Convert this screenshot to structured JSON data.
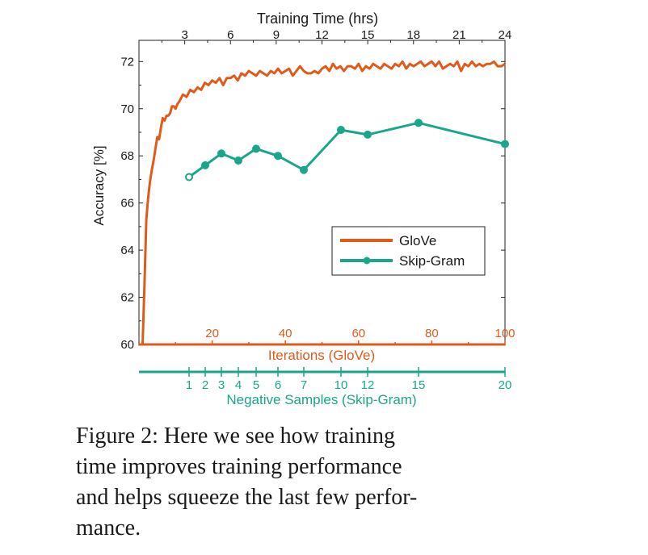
{
  "colors": {
    "glove": "#e05a1a",
    "skipgram": "#1aa68a",
    "axis": "#222222",
    "text": "#1a1a1a"
  },
  "chart_data": {
    "type": "line",
    "top_axis": {
      "label": "Training Time (hrs)",
      "ticks": [
        "3",
        "6",
        "9",
        "12",
        "15",
        "18",
        "21",
        "24"
      ],
      "values": [
        3,
        6,
        9,
        12,
        15,
        18,
        21,
        24
      ],
      "range": [
        0,
        24
      ]
    },
    "y_axis": {
      "label": "Accuracy [%]",
      "ticks": [
        "60",
        "62",
        "64",
        "66",
        "68",
        "70",
        "72"
      ],
      "values": [
        60,
        62,
        64,
        66,
        68,
        70,
        72
      ],
      "range": [
        60,
        72.9
      ]
    },
    "iterations_axis": {
      "label": "Iterations (GloVe)",
      "ticks": [
        "20",
        "40",
        "60",
        "80",
        "100"
      ],
      "values": [
        20,
        40,
        60,
        80,
        100
      ],
      "range": [
        0,
        100
      ]
    },
    "negative_samples_axis": {
      "label": "Negative Samples (Skip-Gram)",
      "ticks": [
        "1",
        "2",
        "3",
        "4",
        "5",
        "6",
        "7",
        "10",
        "12",
        "15",
        "20"
      ]
    },
    "legend": {
      "position": "right-center",
      "entries": [
        "GloVe",
        "Skip-Gram"
      ]
    },
    "series": [
      {
        "name": "GloVe",
        "x_axis": "iterations",
        "x": [
          1,
          1.5,
          2,
          2.5,
          3,
          3.5,
          4,
          4.5,
          5,
          5.5,
          6,
          6.5,
          7,
          7.5,
          8,
          8.5,
          9,
          9.5,
          10,
          10.5,
          11,
          12,
          13,
          14,
          15,
          16,
          17,
          18,
          19,
          20,
          21,
          22,
          23,
          24,
          25,
          26,
          27,
          28,
          29,
          30,
          31,
          32,
          33,
          34,
          35,
          36,
          37,
          38,
          39,
          40,
          41,
          42,
          43,
          44,
          45,
          46,
          47,
          48,
          49,
          50,
          51,
          52,
          53,
          54,
          55,
          56,
          57,
          58,
          59,
          60,
          61,
          62,
          63,
          64,
          65,
          66,
          67,
          68,
          69,
          70,
          71,
          72,
          73,
          74,
          75,
          76,
          77,
          78,
          79,
          80,
          81,
          82,
          83,
          84,
          85,
          86,
          87,
          88,
          89,
          90,
          91,
          92,
          93,
          94,
          95,
          96,
          97,
          98,
          99,
          100
        ],
        "values": [
          60,
          62.5,
          65.3,
          66.2,
          66.9,
          67.4,
          67.8,
          68.3,
          68.8,
          68.7,
          69.2,
          69.6,
          69.5,
          69.7,
          69.7,
          69.8,
          70.1,
          70.1,
          70.0,
          70.2,
          70.3,
          70.6,
          70.5,
          70.8,
          70.7,
          70.9,
          70.8,
          71.1,
          71.0,
          71.2,
          71.1,
          71.3,
          71.0,
          71.3,
          71.3,
          71.4,
          71.2,
          71.5,
          71.4,
          71.6,
          71.5,
          71.4,
          71.6,
          71.5,
          71.4,
          71.6,
          71.5,
          71.7,
          71.5,
          71.6,
          71.7,
          71.4,
          71.6,
          71.8,
          71.6,
          71.5,
          71.5,
          71.6,
          71.5,
          71.7,
          71.8,
          71.6,
          71.9,
          71.7,
          71.8,
          71.6,
          71.8,
          71.8,
          71.7,
          71.9,
          71.6,
          71.8,
          71.7,
          71.9,
          71.8,
          71.7,
          71.9,
          71.8,
          71.7,
          71.9,
          71.8,
          72.0,
          71.7,
          71.9,
          71.8,
          71.9,
          72.0,
          71.8,
          71.9,
          72.0,
          71.8,
          72.0,
          71.7,
          71.8,
          71.9,
          71.8,
          72.0,
          71.6,
          71.9,
          71.8,
          72.0,
          71.8,
          71.9,
          71.8,
          71.9,
          71.9,
          72.0,
          71.8,
          71.8,
          71.9
        ]
      },
      {
        "name": "Skip-Gram",
        "x_axis": "negative_samples",
        "x": [
          1,
          2,
          3,
          4,
          5,
          6,
          7,
          10,
          12,
          15,
          20
        ],
        "values": [
          67.1,
          67.6,
          68.1,
          67.8,
          68.3,
          68.0,
          67.4,
          69.1,
          68.9,
          69.4,
          68.5
        ]
      }
    ]
  },
  "caption": {
    "lines": [
      "Figure 2: Here we see how training",
      "time improves training performance",
      "and helps squeeze the last few perfor-",
      "mance."
    ]
  }
}
